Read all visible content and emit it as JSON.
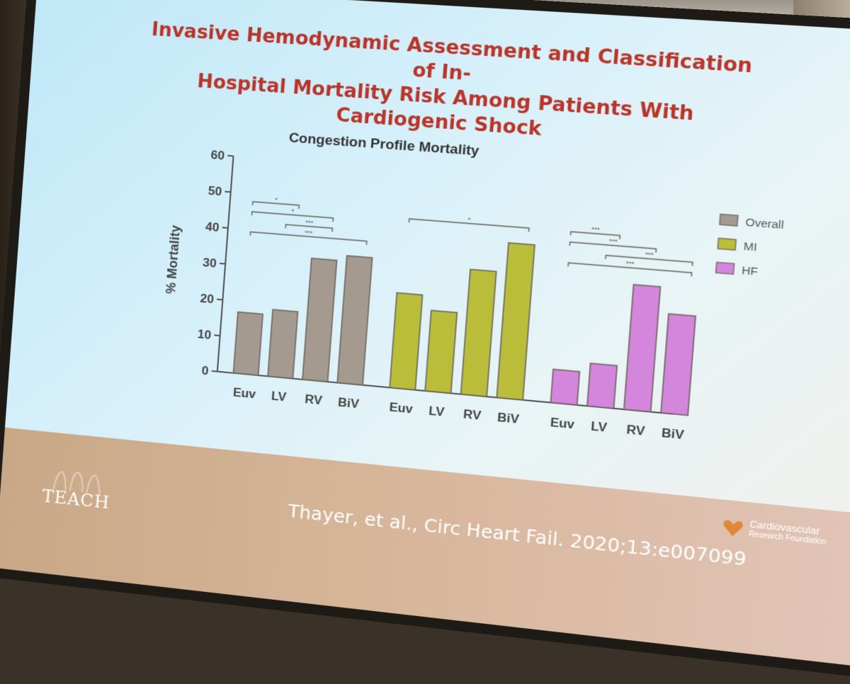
{
  "slide": {
    "title_line1": "Invasive Hemodynamic Assessment and Classification of In-",
    "title_line2": "Hospital Mortality Risk Among Patients With Cardiogenic Shock",
    "citation": "Thayer, et al., Circ Heart Fail. 2020;13:e007099",
    "logo_left": "TEACH",
    "logo_right_line1": "Cardiovascular",
    "logo_right_line2": "Research Foundation"
  },
  "colors": {
    "overall": "#a59a8f",
    "mi": "#b9bd3a",
    "hf": "#d486dd",
    "title": "#b9352a"
  },
  "chart_data": {
    "type": "bar",
    "title": "Congestion Profile Mortality",
    "ylabel": "% Mortality",
    "xlabel": "",
    "ylim": [
      0,
      60
    ],
    "yticks": [
      0,
      10,
      20,
      30,
      40,
      50,
      60
    ],
    "categories": [
      "Euv",
      "LV",
      "RV",
      "BiV"
    ],
    "legend_position": "right",
    "series": [
      {
        "name": "Overall",
        "values": [
          17,
          18.5,
          33.5,
          35
        ],
        "significance": [
          {
            "label": "*",
            "from": 0,
            "to": 1
          },
          {
            "label": "*",
            "from": 0,
            "to": 2
          },
          {
            "label": "***",
            "from": 1,
            "to": 2
          },
          {
            "label": "***",
            "from": 0,
            "to": 3
          }
        ]
      },
      {
        "name": "MI",
        "values": [
          26,
          22,
          34,
          42
        ],
        "significance": [
          {
            "label": "*",
            "from": 0,
            "to": 3
          }
        ]
      },
      {
        "name": "HF",
        "values": [
          9,
          11.5,
          33.5,
          26.5
        ],
        "significance": [
          {
            "label": "***",
            "from": 0,
            "to": 1
          },
          {
            "label": "***",
            "from": 0,
            "to": 2
          },
          {
            "label": "***",
            "from": 1,
            "to": 3
          },
          {
            "label": "***",
            "from": 0,
            "to": 3
          }
        ]
      }
    ]
  }
}
